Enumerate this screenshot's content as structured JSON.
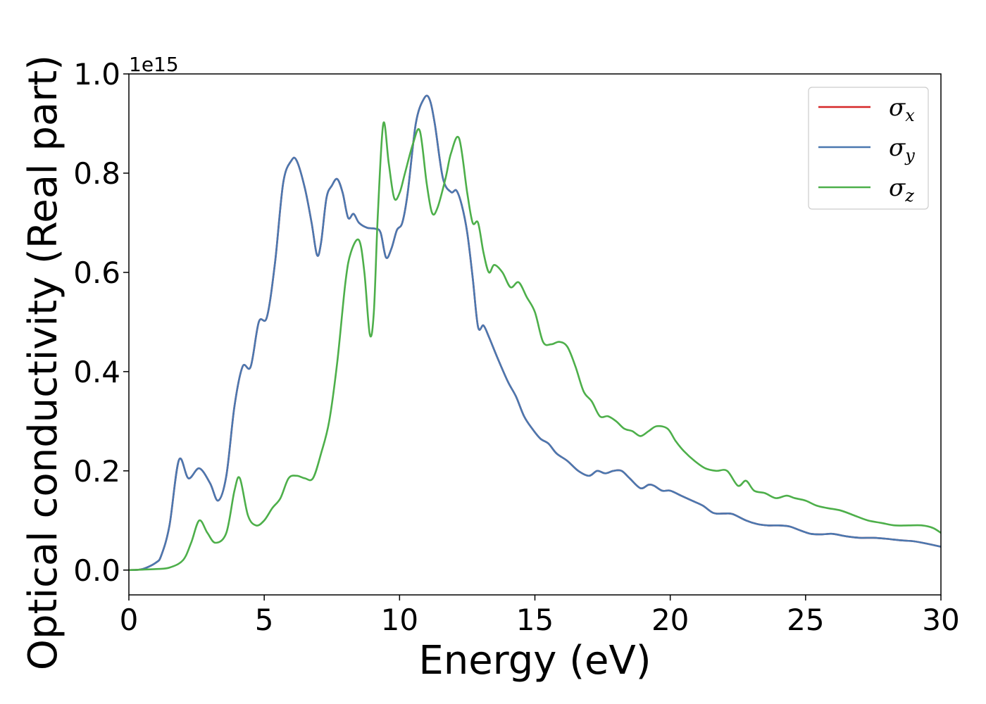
{
  "chart_data": {
    "type": "line",
    "xlabel": "Energy (eV)",
    "ylabel": "Optical conductivity (Real part)",
    "y_offset_text": "1e15",
    "xlim": [
      0,
      30
    ],
    "ylim": [
      -0.05,
      1.0
    ],
    "x_ticks": [
      0,
      5,
      10,
      15,
      20,
      25,
      30
    ],
    "x_tick_labels": [
      "0",
      "5",
      "10",
      "15",
      "20",
      "25",
      "30"
    ],
    "y_ticks": [
      0.0,
      0.2,
      0.4,
      0.6,
      0.8,
      1.0
    ],
    "y_tick_labels": [
      "0.0",
      "0.2",
      "0.4",
      "0.6",
      "0.8",
      "1.0"
    ],
    "grid": false,
    "legend_position": "top-right",
    "colors": {
      "sigma_x": "#d62728",
      "sigma_y": "#4a78b0",
      "sigma_z": "#4daf4a"
    },
    "series": [
      {
        "name": "σx",
        "symbol": "σ",
        "subscript": "x",
        "color": "#d62728",
        "x": [
          0,
          0.5,
          1.0,
          1.2,
          1.5,
          1.85,
          2.2,
          2.6,
          3.0,
          3.3,
          3.6,
          3.9,
          4.2,
          4.5,
          4.8,
          5.1,
          5.4,
          5.7,
          6.0,
          6.2,
          6.5,
          6.75,
          6.95,
          7.1,
          7.3,
          7.5,
          7.7,
          7.9,
          8.1,
          8.3,
          8.5,
          8.8,
          9.1,
          9.3,
          9.5,
          9.7,
          9.9,
          10.1,
          10.3,
          10.6,
          10.9,
          11.1,
          11.3,
          11.6,
          11.9,
          12.1,
          12.3,
          12.5,
          12.7,
          12.9,
          13.1,
          13.3,
          13.6,
          14.0,
          14.3,
          14.6,
          14.9,
          15.2,
          15.5,
          15.8,
          16.2,
          16.6,
          17.0,
          17.3,
          17.6,
          17.9,
          18.2,
          18.5,
          18.9,
          19.2,
          19.4,
          19.7,
          20.0,
          20.4,
          20.8,
          21.2,
          21.6,
          22.0,
          22.3,
          22.8,
          23.2,
          23.6,
          24.0,
          24.4,
          24.8,
          25.2,
          25.6,
          26.0,
          26.5,
          27.0,
          27.5,
          28.0,
          28.5,
          29.0,
          29.5,
          30.0
        ],
        "y": [
          0.0,
          0.002,
          0.015,
          0.03,
          0.09,
          0.222,
          0.185,
          0.205,
          0.175,
          0.14,
          0.19,
          0.33,
          0.41,
          0.41,
          0.5,
          0.51,
          0.62,
          0.78,
          0.825,
          0.825,
          0.77,
          0.7,
          0.635,
          0.66,
          0.75,
          0.775,
          0.788,
          0.76,
          0.71,
          0.718,
          0.7,
          0.69,
          0.688,
          0.68,
          0.63,
          0.648,
          0.685,
          0.7,
          0.76,
          0.9,
          0.95,
          0.95,
          0.9,
          0.79,
          0.762,
          0.765,
          0.735,
          0.68,
          0.59,
          0.49,
          0.493,
          0.47,
          0.43,
          0.38,
          0.35,
          0.31,
          0.285,
          0.265,
          0.255,
          0.235,
          0.22,
          0.2,
          0.19,
          0.2,
          0.195,
          0.2,
          0.2,
          0.185,
          0.165,
          0.172,
          0.17,
          0.16,
          0.16,
          0.15,
          0.14,
          0.13,
          0.115,
          0.114,
          0.113,
          0.1,
          0.093,
          0.09,
          0.09,
          0.088,
          0.08,
          0.073,
          0.072,
          0.073,
          0.068,
          0.065,
          0.065,
          0.063,
          0.06,
          0.058,
          0.053,
          0.047
        ]
      },
      {
        "name": "σy",
        "symbol": "σ",
        "subscript": "y",
        "color": "#4a78b0",
        "x": [
          0,
          0.5,
          1.0,
          1.2,
          1.5,
          1.85,
          2.2,
          2.6,
          3.0,
          3.3,
          3.6,
          3.9,
          4.2,
          4.5,
          4.8,
          5.1,
          5.4,
          5.7,
          6.0,
          6.2,
          6.5,
          6.75,
          6.95,
          7.1,
          7.3,
          7.5,
          7.7,
          7.9,
          8.1,
          8.3,
          8.5,
          8.8,
          9.1,
          9.3,
          9.5,
          9.7,
          9.9,
          10.1,
          10.3,
          10.6,
          10.9,
          11.1,
          11.3,
          11.6,
          11.9,
          12.1,
          12.3,
          12.5,
          12.7,
          12.9,
          13.1,
          13.3,
          13.6,
          14.0,
          14.3,
          14.6,
          14.9,
          15.2,
          15.5,
          15.8,
          16.2,
          16.6,
          17.0,
          17.3,
          17.6,
          17.9,
          18.2,
          18.5,
          18.9,
          19.2,
          19.4,
          19.7,
          20.0,
          20.4,
          20.8,
          21.2,
          21.6,
          22.0,
          22.3,
          22.8,
          23.2,
          23.6,
          24.0,
          24.4,
          24.8,
          25.2,
          25.6,
          26.0,
          26.5,
          27.0,
          27.5,
          28.0,
          28.5,
          29.0,
          29.5,
          30.0
        ],
        "y": [
          0.0,
          0.002,
          0.015,
          0.03,
          0.09,
          0.222,
          0.185,
          0.205,
          0.175,
          0.14,
          0.19,
          0.33,
          0.41,
          0.41,
          0.5,
          0.51,
          0.62,
          0.78,
          0.825,
          0.825,
          0.77,
          0.7,
          0.635,
          0.66,
          0.75,
          0.775,
          0.788,
          0.76,
          0.71,
          0.718,
          0.7,
          0.69,
          0.688,
          0.68,
          0.63,
          0.648,
          0.685,
          0.7,
          0.76,
          0.9,
          0.95,
          0.95,
          0.9,
          0.79,
          0.762,
          0.765,
          0.735,
          0.68,
          0.59,
          0.49,
          0.493,
          0.47,
          0.43,
          0.38,
          0.35,
          0.31,
          0.285,
          0.265,
          0.255,
          0.235,
          0.22,
          0.2,
          0.19,
          0.2,
          0.195,
          0.2,
          0.2,
          0.185,
          0.165,
          0.172,
          0.17,
          0.16,
          0.16,
          0.15,
          0.14,
          0.13,
          0.115,
          0.114,
          0.113,
          0.1,
          0.093,
          0.09,
          0.09,
          0.088,
          0.08,
          0.073,
          0.072,
          0.073,
          0.068,
          0.065,
          0.065,
          0.063,
          0.06,
          0.058,
          0.053,
          0.047
        ]
      },
      {
        "name": "σz",
        "symbol": "σ",
        "subscript": "z",
        "color": "#4daf4a",
        "x": [
          0,
          1.0,
          1.5,
          2.0,
          2.3,
          2.6,
          2.9,
          3.2,
          3.6,
          3.9,
          4.1,
          4.4,
          4.7,
          5.0,
          5.3,
          5.6,
          5.9,
          6.2,
          6.5,
          6.8,
          7.1,
          7.4,
          7.7,
          8.0,
          8.2,
          8.5,
          8.7,
          8.9,
          9.05,
          9.2,
          9.4,
          9.6,
          9.8,
          10.0,
          10.2,
          10.5,
          10.75,
          11.0,
          11.2,
          11.4,
          11.7,
          11.9,
          12.2,
          12.5,
          12.7,
          12.9,
          13.1,
          13.3,
          13.5,
          13.8,
          14.1,
          14.4,
          14.7,
          15.0,
          15.3,
          15.6,
          15.9,
          16.2,
          16.5,
          16.8,
          17.1,
          17.4,
          17.7,
          18.0,
          18.3,
          18.6,
          18.9,
          19.2,
          19.5,
          19.9,
          20.2,
          20.5,
          20.9,
          21.3,
          21.7,
          22.1,
          22.5,
          22.8,
          23.1,
          23.5,
          23.9,
          24.3,
          24.6,
          25.0,
          25.4,
          25.8,
          26.3,
          26.8,
          27.3,
          27.8,
          28.3,
          28.8,
          29.3,
          29.7,
          30.0
        ],
        "y": [
          0.0,
          0.002,
          0.005,
          0.02,
          0.055,
          0.1,
          0.075,
          0.055,
          0.075,
          0.16,
          0.185,
          0.11,
          0.09,
          0.1,
          0.125,
          0.145,
          0.185,
          0.19,
          0.185,
          0.185,
          0.235,
          0.3,
          0.42,
          0.58,
          0.64,
          0.665,
          0.6,
          0.475,
          0.52,
          0.72,
          0.9,
          0.82,
          0.75,
          0.76,
          0.8,
          0.86,
          0.885,
          0.78,
          0.72,
          0.73,
          0.79,
          0.84,
          0.87,
          0.76,
          0.7,
          0.7,
          0.64,
          0.6,
          0.615,
          0.6,
          0.57,
          0.58,
          0.55,
          0.52,
          0.46,
          0.455,
          0.46,
          0.45,
          0.41,
          0.36,
          0.34,
          0.31,
          0.31,
          0.3,
          0.285,
          0.28,
          0.27,
          0.28,
          0.29,
          0.285,
          0.26,
          0.24,
          0.22,
          0.205,
          0.2,
          0.2,
          0.17,
          0.18,
          0.16,
          0.155,
          0.145,
          0.15,
          0.145,
          0.14,
          0.13,
          0.125,
          0.12,
          0.11,
          0.1,
          0.095,
          0.09,
          0.09,
          0.09,
          0.085,
          0.075
        ]
      }
    ]
  }
}
